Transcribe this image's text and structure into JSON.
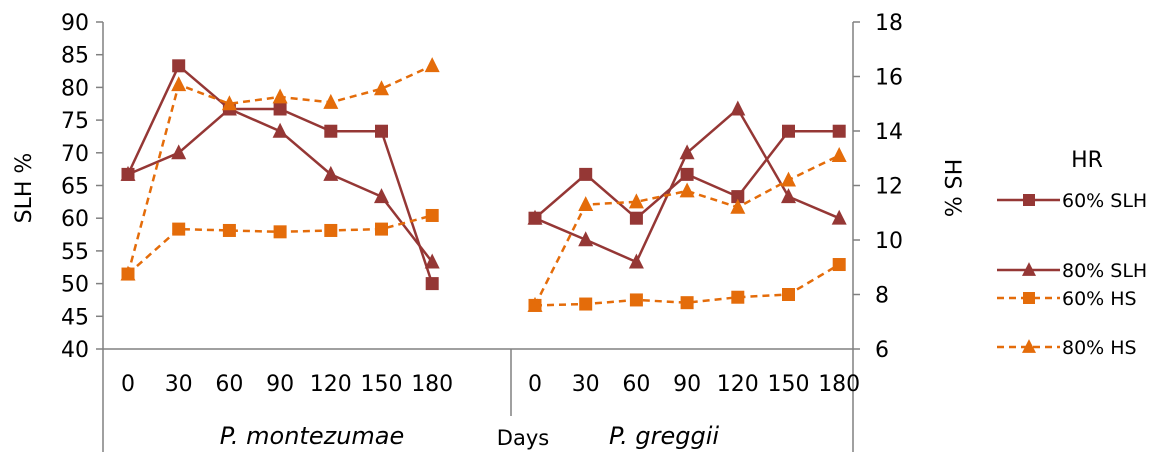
{
  "chart_data": {
    "type": "line",
    "ylabel": "SLH %",
    "y2label": "HS %",
    "xlabel": "Days",
    "legend_title": "HR",
    "legend_position": "right",
    "grid": false,
    "ylim": [
      40,
      90
    ],
    "yticks": [
      "40",
      "45",
      "50",
      "55",
      "60",
      "65",
      "70",
      "75",
      "80",
      "85",
      "90"
    ],
    "y2lim": [
      6,
      18
    ],
    "y2ticks": [
      "6",
      "8",
      "10",
      "12",
      "14",
      "16",
      "18"
    ],
    "groups": [
      {
        "label": "P. montezumae",
        "categories": [
          "0",
          "30",
          "60",
          "90",
          "120",
          "150",
          "180"
        ]
      },
      {
        "label": "P. greggii",
        "categories": [
          "0",
          "30",
          "60",
          "90",
          "120",
          "150",
          "180"
        ]
      }
    ],
    "series": [
      {
        "name": "60% SLH",
        "axis": "left",
        "color": "#953735",
        "marker": "square",
        "dash": "solid",
        "values": [
          [
            66.7,
            83.3,
            76.7,
            76.7,
            73.3,
            73.3,
            50.0
          ],
          [
            60.0,
            66.7,
            60.0,
            66.7,
            63.3,
            73.3,
            73.3
          ]
        ]
      },
      {
        "name": "80% SLH",
        "axis": "left",
        "color": "#953735",
        "marker": "triangle",
        "dash": "solid",
        "values": [
          [
            66.7,
            70.0,
            76.7,
            73.3,
            66.7,
            63.3,
            53.3
          ],
          [
            60.0,
            56.7,
            53.3,
            70.0,
            76.7,
            63.3,
            60.0
          ]
        ]
      },
      {
        "name": "60% HS",
        "axis": "right",
        "color": "#E46C0A",
        "marker": "square",
        "dash": "dashed",
        "values": [
          [
            8.75,
            10.4,
            10.35,
            10.3,
            10.35,
            10.4,
            10.9
          ],
          [
            7.6,
            7.65,
            7.8,
            7.7,
            7.9,
            8.0,
            9.1
          ]
        ]
      },
      {
        "name": "80% HS",
        "axis": "right",
        "color": "#E46C0A",
        "marker": "triangle",
        "dash": "dashed",
        "values": [
          [
            8.75,
            15.7,
            15.0,
            15.25,
            15.05,
            15.55,
            16.4
          ],
          [
            7.6,
            11.3,
            11.4,
            11.8,
            11.2,
            12.2,
            13.1
          ]
        ]
      }
    ]
  }
}
